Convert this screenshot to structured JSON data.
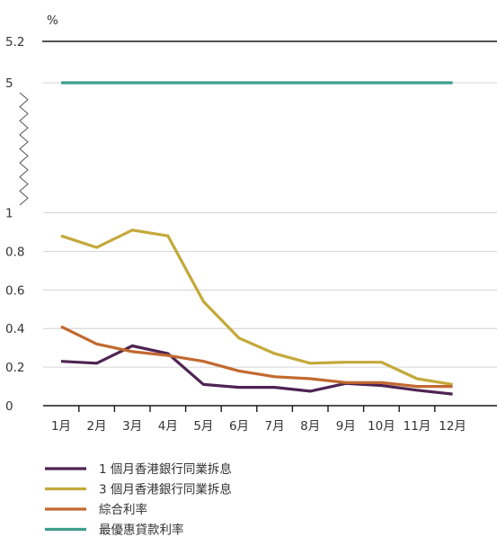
{
  "chart_data": {
    "type": "line",
    "ylabel": "%",
    "categories": [
      "1月",
      "2月",
      "3月",
      "4月",
      "5月",
      "6月",
      "7月",
      "8月",
      "9月",
      "10月",
      "11月",
      "12月"
    ],
    "y_ticks": [
      "0",
      "0.2",
      "0.4",
      "0.6",
      "0.8",
      "1",
      "5",
      "5.2"
    ],
    "y_axis_break": [
      1,
      5
    ],
    "grid": true,
    "legend_position": "bottom-left",
    "series": [
      {
        "name": "1 個月香港銀行同業拆息",
        "color": "#4e2453",
        "values": [
          0.23,
          0.22,
          0.31,
          0.27,
          0.11,
          0.095,
          0.095,
          0.075,
          0.115,
          0.105,
          0.08,
          0.06
        ]
      },
      {
        "name": "3 個月香港銀行同業拆息",
        "color": "#c4a93a",
        "values": [
          0.88,
          0.82,
          0.91,
          0.88,
          0.54,
          0.35,
          0.27,
          0.22,
          0.225,
          0.225,
          0.14,
          0.11
        ]
      },
      {
        "name": "綜合利率",
        "color": "#c2692f",
        "values": [
          0.41,
          0.32,
          0.28,
          0.26,
          0.23,
          0.18,
          0.15,
          0.14,
          0.12,
          0.12,
          0.1,
          0.1
        ]
      },
      {
        "name": "最優惠貸款利率",
        "color": "#3e9e8c",
        "values": [
          5,
          5,
          5,
          5,
          5,
          5,
          5,
          5,
          5,
          5,
          5,
          5
        ]
      }
    ]
  }
}
